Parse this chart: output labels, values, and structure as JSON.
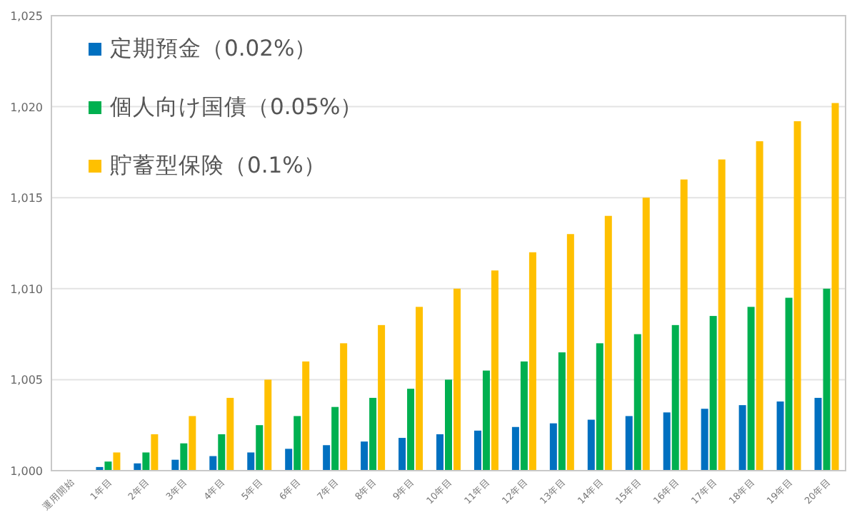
{
  "chart_data": {
    "type": "bar",
    "categories": [
      "運用開始",
      "1年目",
      "2年目",
      "3年目",
      "4年目",
      "5年目",
      "6年目",
      "7年目",
      "8年目",
      "9年目",
      "10年目",
      "11年目",
      "12年目",
      "13年目",
      "14年目",
      "15年目",
      "16年目",
      "17年目",
      "18年目",
      "19年目",
      "20年目"
    ],
    "series": [
      {
        "name": "定期預金（0.02%）",
        "color": "#0070c0",
        "values": [
          1000,
          1000.2,
          1000.4,
          1000.6,
          1000.8,
          1001,
          1001.2,
          1001.4,
          1001.6,
          1001.8,
          1002,
          1002.2,
          1002.4,
          1002.6,
          1002.8,
          1003,
          1003.2,
          1003.4,
          1003.6,
          1003.8,
          1004
        ]
      },
      {
        "name": "個人向け国債（0.05%）",
        "color": "#00b050",
        "values": [
          1000,
          1000.5,
          1001,
          1001.5,
          1002,
          1002.5,
          1003,
          1003.5,
          1004,
          1004.5,
          1005,
          1005.5,
          1006,
          1006.5,
          1007,
          1007.5,
          1008,
          1008.5,
          1009,
          1009.5,
          1010
        ]
      },
      {
        "name": "貯蓄型保険（0.1%）",
        "color": "#ffc000",
        "values": [
          1000,
          1001,
          1002,
          1003,
          1004,
          1005,
          1006,
          1007,
          1008,
          1009,
          1010,
          1011,
          1012,
          1013,
          1014,
          1015,
          1016,
          1017.1,
          1018.1,
          1019.2,
          1020.2
        ]
      }
    ],
    "ylim": [
      1000,
      1025
    ],
    "yticks": [
      {
        "value": 1000,
        "label": "1,000"
      },
      {
        "value": 1005,
        "label": "1,005"
      },
      {
        "value": 1010,
        "label": "1,010"
      },
      {
        "value": 1015,
        "label": "1,015"
      },
      {
        "value": 1020,
        "label": "1,020"
      },
      {
        "value": 1025,
        "label": "1,025"
      }
    ],
    "grid": "y",
    "legend": "top left"
  }
}
